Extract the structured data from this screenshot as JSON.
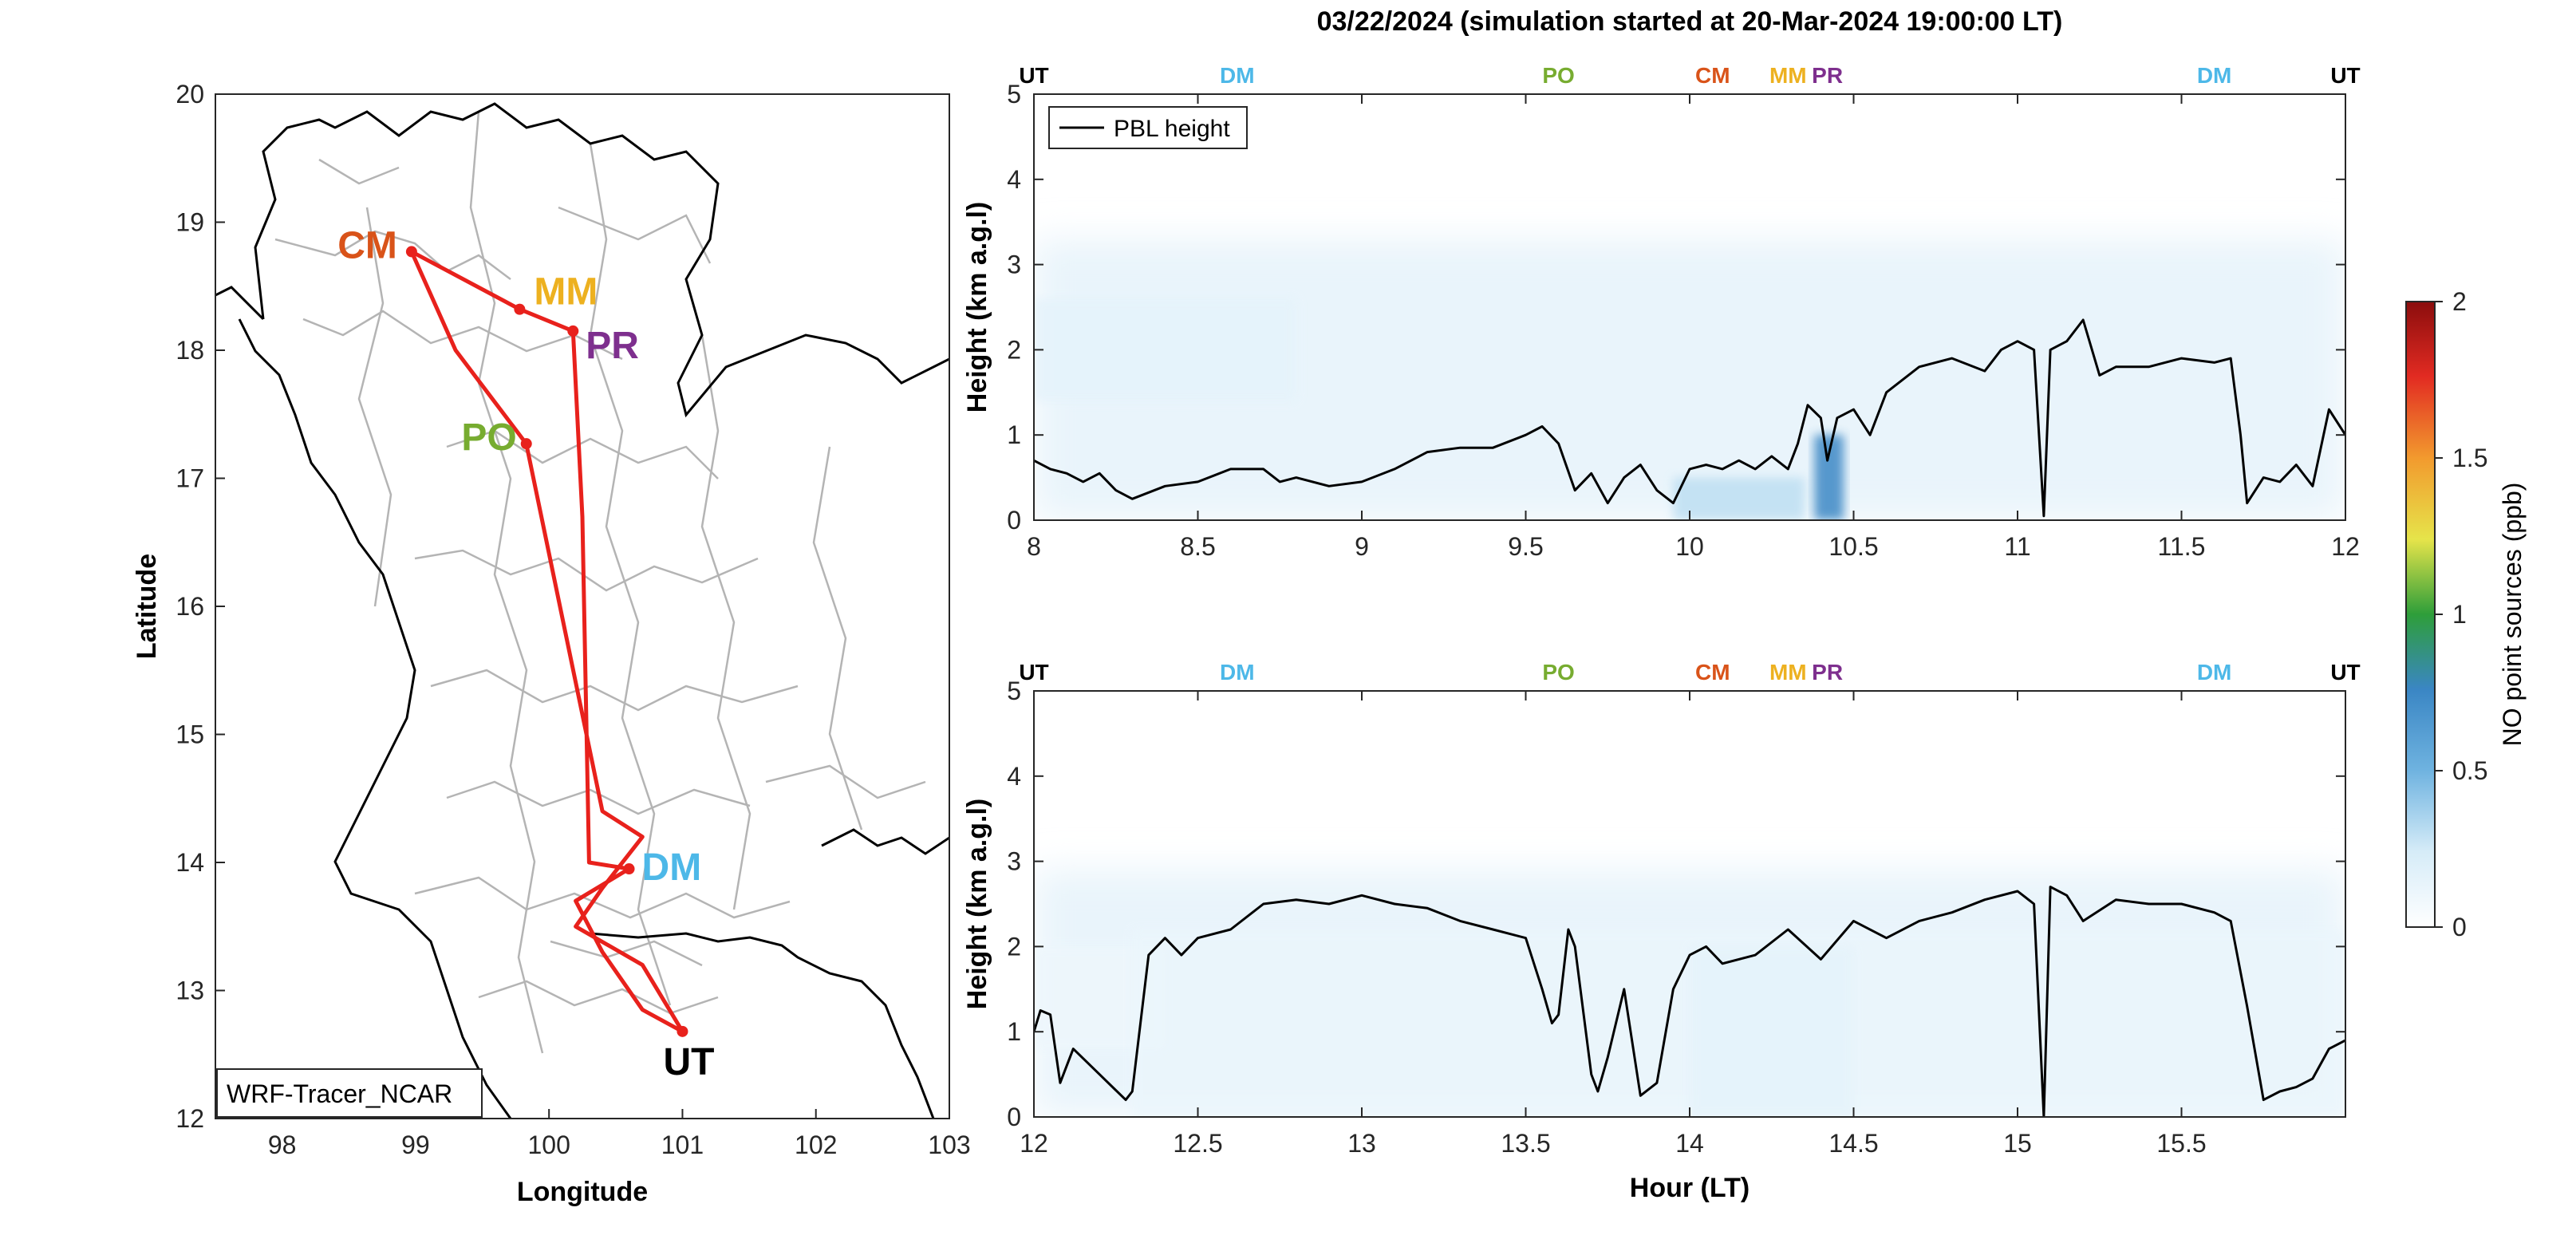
{
  "figure": {
    "title": "03/22/2024 (simulation started at 20-Mar-2024 19:00:00 LT)"
  },
  "colors": {
    "route": "#e8211c",
    "border": "#000000",
    "province": "#b4b4b4",
    "pbl": "#000000",
    "UT": "#000000",
    "DM": "#4db8e8",
    "PO": "#77ac30",
    "CM": "#d95319",
    "MM": "#edb120",
    "PR": "#7e2f8e"
  },
  "chart_data": [
    {
      "type": "map",
      "xlabel": "Longitude",
      "ylabel": "Latitude",
      "xlim": [
        97.5,
        103
      ],
      "ylim": [
        12,
        20
      ],
      "xticks": [
        98,
        99,
        100,
        101,
        102,
        103
      ],
      "yticks": [
        12,
        13,
        14,
        15,
        16,
        17,
        18,
        19,
        20
      ],
      "legend": "WRF-Tracer_NCAR",
      "sites": [
        {
          "name": "CM",
          "lon": 98.97,
          "lat": 18.77,
          "color": "#d95319"
        },
        {
          "name": "MM",
          "lon": 99.78,
          "lat": 18.32,
          "color": "#edb120"
        },
        {
          "name": "PR",
          "lon": 100.18,
          "lat": 18.15,
          "color": "#7e2f8e"
        },
        {
          "name": "PO",
          "lon": 99.83,
          "lat": 17.27,
          "color": "#77ac30"
        },
        {
          "name": "DM",
          "lon": 100.6,
          "lat": 13.95,
          "color": "#4db8e8"
        },
        {
          "name": "UT",
          "lon": 101.0,
          "lat": 12.68,
          "color": "#000000"
        }
      ],
      "route": [
        [
          101.0,
          12.68
        ],
        [
          100.7,
          12.85
        ],
        [
          100.4,
          13.3
        ],
        [
          100.2,
          13.7
        ],
        [
          100.6,
          13.95
        ],
        [
          100.3,
          14.0
        ],
        [
          100.25,
          16.7
        ],
        [
          100.18,
          18.15
        ],
        [
          99.78,
          18.32
        ],
        [
          98.97,
          18.77
        ],
        [
          99.3,
          18.0
        ],
        [
          99.83,
          17.27
        ],
        [
          100.4,
          14.4
        ],
        [
          100.7,
          14.2
        ],
        [
          100.4,
          13.8
        ],
        [
          100.2,
          13.5
        ],
        [
          100.7,
          13.2
        ],
        [
          101.0,
          12.68
        ]
      ]
    },
    {
      "type": "heatmap+line",
      "xlabel": "",
      "ylabel": "Height (km a.g.l)",
      "xlim": [
        8,
        12
      ],
      "ylim": [
        0,
        5
      ],
      "xticks": [
        "8",
        "8.5",
        "9",
        "9.5",
        "10",
        "10.5",
        "11",
        "11.5",
        "12"
      ],
      "yticks": [
        "0",
        "1",
        "2",
        "3",
        "4",
        "5"
      ],
      "legend": "PBL height",
      "events": [
        {
          "label": "UT",
          "x": 8.0,
          "color": "#000000"
        },
        {
          "label": "DM",
          "x": 8.62,
          "color": "#4db8e8"
        },
        {
          "label": "PO",
          "x": 9.6,
          "color": "#77ac30"
        },
        {
          "label": "CM",
          "x": 10.07,
          "color": "#d95319"
        },
        {
          "label": "MM",
          "x": 10.3,
          "color": "#edb120"
        },
        {
          "label": "PR",
          "x": 10.42,
          "color": "#7e2f8e"
        },
        {
          "label": "DM",
          "x": 11.6,
          "color": "#4db8e8"
        },
        {
          "label": "UT",
          "x": 12.0,
          "color": "#000000"
        }
      ],
      "series": [
        {
          "name": "PBL height",
          "x": [
            8.0,
            8.05,
            8.1,
            8.15,
            8.2,
            8.25,
            8.3,
            8.4,
            8.5,
            8.6,
            8.7,
            8.75,
            8.8,
            8.9,
            9.0,
            9.1,
            9.2,
            9.3,
            9.4,
            9.5,
            9.55,
            9.6,
            9.65,
            9.7,
            9.75,
            9.8,
            9.85,
            9.9,
            9.95,
            10.0,
            10.05,
            10.1,
            10.15,
            10.2,
            10.25,
            10.3,
            10.33,
            10.36,
            10.4,
            10.42,
            10.45,
            10.5,
            10.55,
            10.6,
            10.7,
            10.8,
            10.9,
            10.95,
            11.0,
            11.05,
            11.08,
            11.1,
            11.15,
            11.2,
            11.25,
            11.3,
            11.4,
            11.5,
            11.6,
            11.65,
            11.68,
            11.7,
            11.75,
            11.8,
            11.85,
            11.9,
            11.95,
            12.0
          ],
          "y": [
            0.7,
            0.6,
            0.55,
            0.45,
            0.55,
            0.35,
            0.25,
            0.4,
            0.45,
            0.6,
            0.6,
            0.45,
            0.5,
            0.4,
            0.45,
            0.6,
            0.8,
            0.85,
            0.85,
            1.0,
            1.1,
            0.9,
            0.35,
            0.55,
            0.2,
            0.5,
            0.65,
            0.35,
            0.2,
            0.6,
            0.65,
            0.6,
            0.7,
            0.6,
            0.75,
            0.6,
            0.9,
            1.35,
            1.2,
            0.7,
            1.2,
            1.3,
            1.0,
            1.5,
            1.8,
            1.9,
            1.75,
            2.0,
            2.1,
            2.0,
            0.05,
            2.0,
            2.1,
            2.35,
            1.7,
            1.8,
            1.8,
            1.9,
            1.85,
            1.9,
            1.0,
            0.2,
            0.5,
            0.45,
            0.65,
            0.4,
            1.3,
            1.0
          ]
        }
      ],
      "colorbar": {
        "label": "NO point sources (ppb)",
        "ticks": [
          "0",
          "0.5",
          "1",
          "1.5",
          "2"
        ],
        "lim": [
          0,
          2
        ]
      },
      "shading": [
        {
          "x": 8.0,
          "x2": 8.8,
          "y1": 1.4,
          "y2": 2.6,
          "v": 0.15
        },
        {
          "x": 9.95,
          "x2": 10.35,
          "y1": 0.0,
          "y2": 0.5,
          "v": 0.3
        },
        {
          "x": 10.38,
          "x2": 10.47,
          "y1": 0.0,
          "y2": 1.0,
          "v": 0.75
        }
      ]
    },
    {
      "type": "heatmap+line",
      "xlabel": "Hour (LT)",
      "ylabel": "Height (km a.g.l)",
      "xlim": [
        12,
        16
      ],
      "ylim": [
        0,
        5
      ],
      "xticks": [
        "12",
        "12.5",
        "13",
        "13.5",
        "14",
        "14.5",
        "15",
        "15.5"
      ],
      "yticks": [
        "0",
        "1",
        "2",
        "3",
        "4",
        "5"
      ],
      "events": [
        {
          "label": "UT",
          "x": 12.0,
          "color": "#000000"
        },
        {
          "label": "DM",
          "x": 12.62,
          "color": "#4db8e8"
        },
        {
          "label": "PO",
          "x": 13.6,
          "color": "#77ac30"
        },
        {
          "label": "CM",
          "x": 14.07,
          "color": "#d95319"
        },
        {
          "label": "MM",
          "x": 14.3,
          "color": "#edb120"
        },
        {
          "label": "PR",
          "x": 14.42,
          "color": "#7e2f8e"
        },
        {
          "label": "DM",
          "x": 15.6,
          "color": "#4db8e8"
        },
        {
          "label": "UT",
          "x": 16.0,
          "color": "#000000"
        }
      ],
      "series": [
        {
          "name": "PBL height",
          "x": [
            12.0,
            12.02,
            12.05,
            12.08,
            12.12,
            12.2,
            12.28,
            12.3,
            12.35,
            12.4,
            12.45,
            12.5,
            12.6,
            12.7,
            12.8,
            12.9,
            13.0,
            13.1,
            13.2,
            13.3,
            13.4,
            13.5,
            13.55,
            13.58,
            13.6,
            13.63,
            13.65,
            13.7,
            13.72,
            13.75,
            13.8,
            13.85,
            13.9,
            13.95,
            14.0,
            14.05,
            14.1,
            14.2,
            14.3,
            14.4,
            14.5,
            14.6,
            14.7,
            14.8,
            14.9,
            15.0,
            15.05,
            15.08,
            15.1,
            15.15,
            15.2,
            15.3,
            15.4,
            15.5,
            15.6,
            15.65,
            15.7,
            15.75,
            15.8,
            15.85,
            15.9,
            15.95,
            16.0
          ],
          "y": [
            1.0,
            1.25,
            1.2,
            0.4,
            0.8,
            0.5,
            0.2,
            0.3,
            1.9,
            2.1,
            1.9,
            2.1,
            2.2,
            2.5,
            2.55,
            2.5,
            2.6,
            2.5,
            2.45,
            2.3,
            2.2,
            2.1,
            1.5,
            1.1,
            1.2,
            2.2,
            2.0,
            0.5,
            0.3,
            0.7,
            1.5,
            0.25,
            0.4,
            1.5,
            1.9,
            2.0,
            1.8,
            1.9,
            2.2,
            1.85,
            2.3,
            2.1,
            2.3,
            2.4,
            2.55,
            2.65,
            2.5,
            0.0,
            2.7,
            2.6,
            2.3,
            2.55,
            2.5,
            2.5,
            2.4,
            2.3,
            1.3,
            0.2,
            0.3,
            0.35,
            0.45,
            0.8,
            0.9
          ]
        }
      ],
      "shading": [
        {
          "x": 12.0,
          "x2": 12.4,
          "y1": 0.8,
          "y2": 2.0,
          "v": 0.1
        },
        {
          "x": 12.3,
          "x2": 16.0,
          "y1": 0.0,
          "y2": 2.2,
          "v": 0.12
        },
        {
          "x": 14.0,
          "x2": 14.5,
          "y1": 0.0,
          "y2": 2.0,
          "v": 0.15
        }
      ]
    }
  ]
}
